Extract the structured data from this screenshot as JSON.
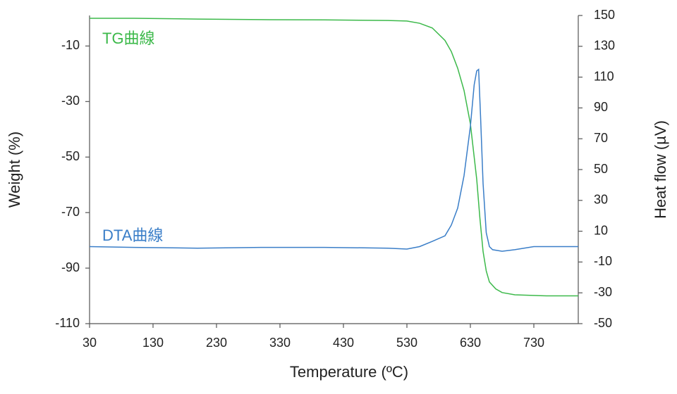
{
  "chart_data": {
    "type": "line",
    "xlabel": "Temperature (ºC)",
    "ylabel": "Weight (%)",
    "y2label": "Heat flow (µV)",
    "xlim": [
      30,
      800
    ],
    "xticks": [
      30,
      130,
      230,
      330,
      430,
      530,
      630,
      730
    ],
    "ylim": [
      -110,
      1
    ],
    "yticks": [
      -110,
      -90,
      -70,
      -50,
      -30,
      -10
    ],
    "y2lim": [
      -50,
      150
    ],
    "y2ticks": [
      -50,
      -30,
      -10,
      10,
      30,
      50,
      70,
      90,
      110,
      130,
      150
    ],
    "series": [
      {
        "name": "TG曲線",
        "color": "#3cb94a",
        "axis": "y",
        "x": [
          30,
          100,
          200,
          300,
          400,
          500,
          530,
          550,
          570,
          590,
          600,
          610,
          620,
          630,
          640,
          645,
          650,
          655,
          660,
          670,
          680,
          700,
          750,
          800
        ],
        "values": [
          0,
          0,
          -0.3,
          -0.5,
          -0.6,
          -0.8,
          -1,
          -1.8,
          -3.5,
          -8,
          -12,
          -18,
          -26,
          -38,
          -58,
          -72,
          -84,
          -91,
          -95,
          -97.5,
          -98.8,
          -99.6,
          -100,
          -100
        ]
      },
      {
        "name": "DTA曲線",
        "color": "#3a7ec8",
        "axis": "y2",
        "x": [
          30,
          100,
          200,
          300,
          400,
          500,
          530,
          550,
          570,
          590,
          600,
          610,
          620,
          630,
          636,
          640,
          643,
          646,
          650,
          655,
          660,
          665,
          680,
          700,
          730,
          800
        ],
        "values": [
          0,
          -0.5,
          -1,
          -0.5,
          -0.5,
          -1,
          -1.6,
          0,
          3.4,
          7,
          14,
          25,
          46,
          78,
          105,
          114,
          115,
          85,
          41,
          9,
          0,
          -2,
          -3,
          -2,
          0,
          0
        ]
      }
    ]
  }
}
